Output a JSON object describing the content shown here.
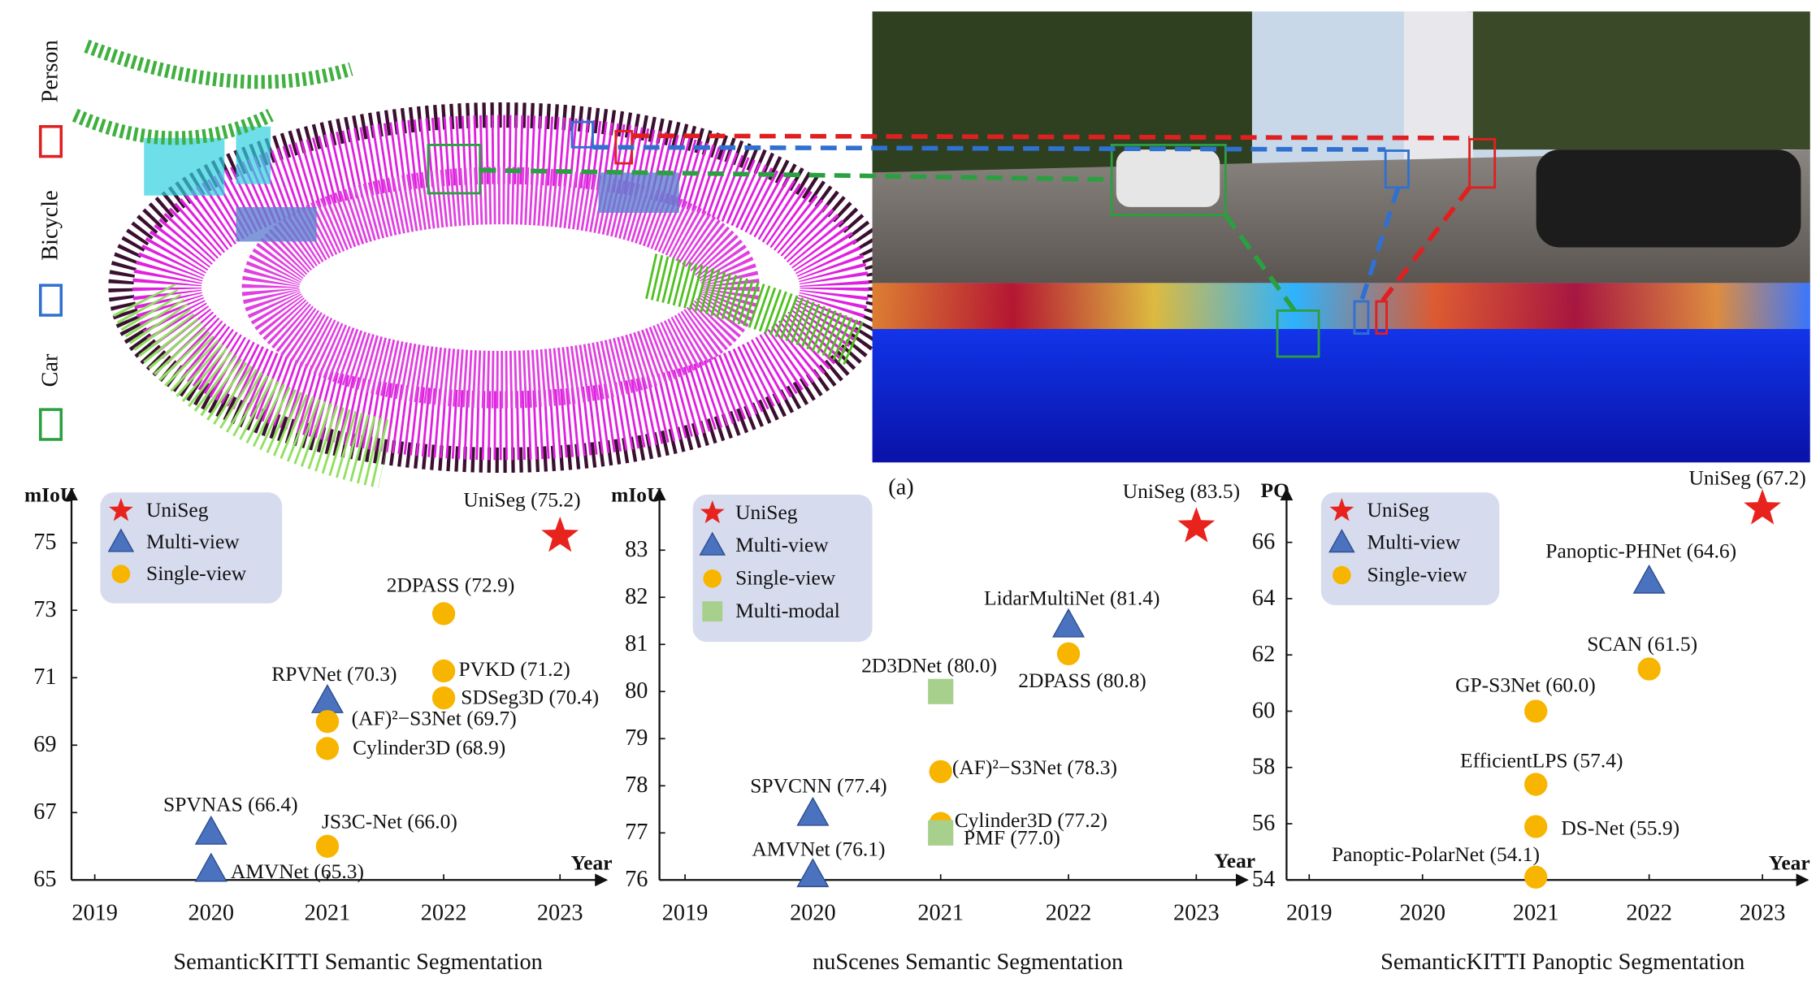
{
  "figure": {
    "top_labels": [
      "Person",
      "Bicycle",
      "Car"
    ],
    "panel_label": "(a)"
  },
  "chart_data": [
    {
      "type": "scatter",
      "title": "SemanticKITTI Semantic Segmentation",
      "y_label": "mIoU",
      "x_label": "Year",
      "xlim": [
        2018.8,
        2023.4
      ],
      "xticks": [
        2019,
        2020,
        2021,
        2022,
        2023
      ],
      "ylim": [
        65,
        76.6
      ],
      "yticks": [
        65,
        67,
        69,
        71,
        73,
        75
      ],
      "series": [
        {
          "name": "UniSeg",
          "color": "#e8231d",
          "marker": "star",
          "x": [
            2023
          ],
          "values": [
            75.2
          ],
          "value_labels": [
            "UniSeg (75.2)"
          ]
        },
        {
          "name": "Multi-view",
          "color": "#4a72bf",
          "marker": "triangle",
          "x": [
            2021,
            2020,
            2020
          ],
          "values": [
            70.3,
            66.4,
            65.3
          ],
          "value_labels": [
            "RPVNet (70.3)",
            "SPVNAS (66.4)",
            "AMVNet (65.3)"
          ]
        },
        {
          "name": "Single-view",
          "color": "#f7b500",
          "marker": "circle",
          "x": [
            2022,
            2022,
            2022,
            2021,
            2021,
            2021
          ],
          "values": [
            72.9,
            71.2,
            70.4,
            69.7,
            68.9,
            66.0
          ],
          "value_labels": [
            "2DPASS (72.9)",
            "PVKD (71.2)",
            "SDSeg3D (70.4)",
            "(AF)²−S3Net (69.7)",
            "Cylinder3D (68.9)",
            "JS3C-Net (66.0)"
          ]
        }
      ]
    },
    {
      "type": "scatter",
      "title": "nuScenes Semantic Segmentation",
      "y_label": "mIoU",
      "x_label": "Year",
      "xlim": [
        2018.8,
        2023.4
      ],
      "xticks": [
        2019,
        2020,
        2021,
        2022,
        2023
      ],
      "ylim": [
        76,
        84.3
      ],
      "yticks": [
        76,
        77,
        78,
        79,
        80,
        81,
        82,
        83
      ],
      "series": [
        {
          "name": "UniSeg",
          "color": "#e8231d",
          "marker": "star",
          "x": [
            2023
          ],
          "values": [
            83.5
          ],
          "value_labels": [
            "UniSeg (83.5)"
          ]
        },
        {
          "name": "Multi-view",
          "color": "#4a72bf",
          "marker": "triangle",
          "x": [
            2022,
            2020,
            2020
          ],
          "values": [
            81.4,
            77.4,
            76.1
          ],
          "value_labels": [
            "LidarMultiNet (81.4)",
            "SPVCNN (77.4)",
            "AMVNet (76.1)"
          ]
        },
        {
          "name": "Single-view",
          "color": "#f7b500",
          "marker": "circle",
          "x": [
            2022,
            2021,
            2021
          ],
          "values": [
            80.8,
            78.3,
            77.2
          ],
          "value_labels": [
            "2DPASS (80.8)",
            "(AF)²−S3Net (78.3)",
            "Cylinder3D (77.2)"
          ]
        },
        {
          "name": "Multi-modal",
          "color": "#a8d08d",
          "marker": "square",
          "x": [
            2021,
            2021
          ],
          "values": [
            80.0,
            77.0
          ],
          "value_labels": [
            "2D3DNet (80.0)",
            "PMF (77.0)"
          ]
        }
      ]
    },
    {
      "type": "scatter",
      "title": "SemanticKITTI Panoptic Segmentation",
      "y_label": "PQ",
      "x_label": "Year",
      "xlim": [
        2018.8,
        2023.4
      ],
      "xticks": [
        2019,
        2020,
        2021,
        2022,
        2023
      ],
      "ylim": [
        54,
        67.9
      ],
      "yticks": [
        54,
        56,
        58,
        60,
        62,
        64,
        66
      ],
      "series": [
        {
          "name": "UniSeg",
          "color": "#e8231d",
          "marker": "star",
          "x": [
            2023
          ],
          "values": [
            67.2
          ],
          "value_labels": [
            "UniSeg (67.2)"
          ]
        },
        {
          "name": "Multi-view",
          "color": "#4a72bf",
          "marker": "triangle",
          "x": [
            2022
          ],
          "values": [
            64.6
          ],
          "value_labels": [
            "Panoptic-PHNet (64.6)"
          ]
        },
        {
          "name": "Single-view",
          "color": "#f7b500",
          "marker": "circle",
          "x": [
            2022,
            2021,
            2021,
            2021,
            2021
          ],
          "values": [
            61.5,
            60.0,
            57.4,
            55.9,
            54.1
          ],
          "value_labels": [
            "SCAN (61.5)",
            "GP-S3Net (60.0)",
            "EfficientLPS (57.4)",
            "DS-Net (55.9)",
            "Panoptic-PolarNet (54.1)"
          ]
        }
      ]
    }
  ]
}
